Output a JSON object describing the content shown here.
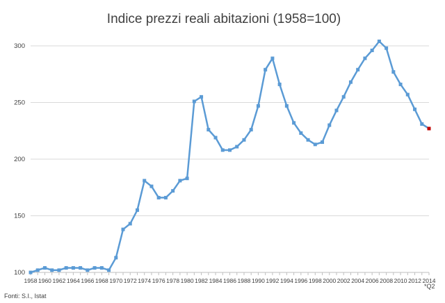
{
  "chart_data": {
    "type": "line",
    "title": "Indice prezzi reali abitazioni (1958=100)",
    "xlabel": "",
    "ylabel": "",
    "x": [
      1958,
      1959,
      1960,
      1961,
      1962,
      1963,
      1964,
      1965,
      1966,
      1967,
      1968,
      1969,
      1970,
      1971,
      1972,
      1973,
      1974,
      1975,
      1976,
      1977,
      1978,
      1979,
      1980,
      1981,
      1982,
      1983,
      1984,
      1985,
      1986,
      1987,
      1988,
      1989,
      1990,
      1991,
      1992,
      1993,
      1994,
      1995,
      1996,
      1997,
      1998,
      1999,
      2000,
      2001,
      2002,
      2003,
      2004,
      2005,
      2006,
      2007,
      2008,
      2009,
      2010,
      2011,
      2012,
      2013,
      2014
    ],
    "series": [
      {
        "values": [
          100,
          102,
          104,
          102,
          102,
          104,
          104,
          104,
          102,
          104,
          104,
          102,
          113,
          138,
          143,
          155,
          181,
          176,
          166,
          166,
          172,
          181,
          183,
          251,
          255,
          226,
          219,
          208,
          208,
          211,
          217,
          226,
          247,
          279,
          289,
          266,
          247,
          232,
          223,
          217,
          213,
          215,
          230,
          243,
          255,
          268,
          279,
          289,
          296,
          304,
          298,
          277,
          266,
          257,
          244,
          231,
          227
        ],
        "color": "#5B9BD5"
      }
    ],
    "highlight_last": {
      "color": "#C00000"
    },
    "xlim": [
      1958,
      2014
    ],
    "ylim": [
      100,
      300
    ],
    "yticks": [
      100,
      150,
      200,
      250,
      300
    ],
    "xticks": [
      1958,
      1960,
      1962,
      1964,
      1966,
      1968,
      1970,
      1972,
      1974,
      1976,
      1978,
      1980,
      1982,
      1984,
      1986,
      1988,
      1990,
      1992,
      1994,
      1996,
      1998,
      2000,
      2002,
      2004,
      2006,
      2008,
      2010,
      2012,
      2014
    ],
    "x_tick_note": "*Q2",
    "grid": true,
    "legend": "none"
  },
  "footer": {
    "source": "Fonti: S.I., Istat"
  },
  "colors": {
    "line": "#5B9BD5",
    "last_point": "#C00000",
    "grid": "#D9D9D9",
    "axis": "#BFBFBF",
    "text": "#404040"
  }
}
